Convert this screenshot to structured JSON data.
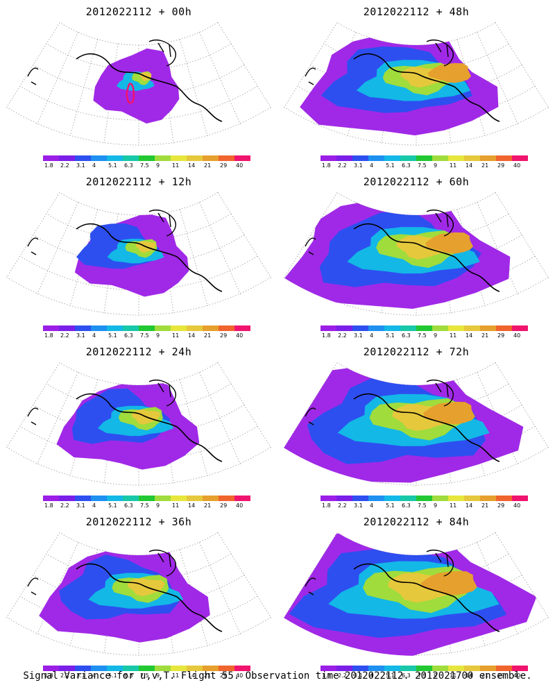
{
  "panels": [
    {
      "title": "2012022112 + 00h",
      "stage": 0
    },
    {
      "title": "2012022112 + 48h",
      "stage": 4
    },
    {
      "title": "2012022112 + 12h",
      "stage": 1
    },
    {
      "title": "2012022112 + 60h",
      "stage": 5
    },
    {
      "title": "2012022112 + 24h",
      "stage": 2
    },
    {
      "title": "2012022112 + 72h",
      "stage": 6
    },
    {
      "title": "2012022112 + 36h",
      "stage": 3
    },
    {
      "title": "2012022112 + 84h",
      "stage": 7
    }
  ],
  "colorbar": {
    "labels": [
      "1.8",
      "2.2",
      "3.1",
      "4",
      "5.1",
      "6.3",
      "7.5",
      "9",
      "11",
      "14",
      "21",
      "29",
      "40"
    ],
    "colors": [
      "#9b1ee6",
      "#7a1ee8",
      "#2d4ff0",
      "#1e90f0",
      "#13b8e6",
      "#18c8a8",
      "#22c832",
      "#a0dc3c",
      "#e6e63c",
      "#e6c83c",
      "#e6a02d",
      "#f0642d",
      "#f0146e"
    ]
  },
  "footer": "Signal Variance for u,v,T. Flight 55. Observation time 2012022112. 2012021700 ensemble."
}
